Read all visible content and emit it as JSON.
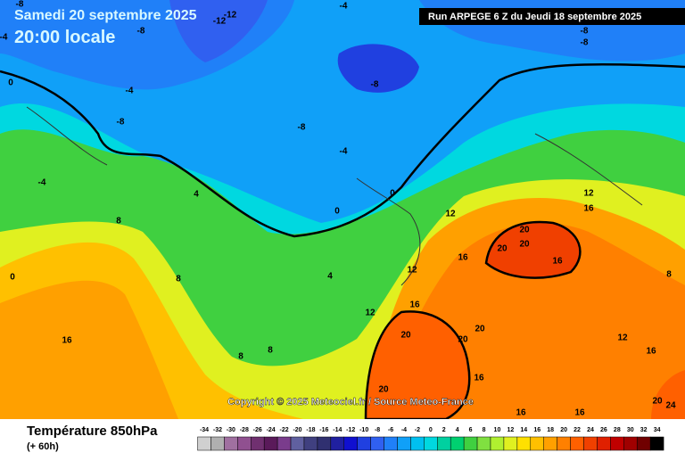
{
  "header": {
    "date": "Samedi 20 septembre 2025",
    "time": "20:00 locale",
    "run": "Run ARPEGE 6 Z du Jeudi 18 septembre 2025"
  },
  "copyright": "Copyright © 2025 Meteociel.fr / Source Meteo-France",
  "footer": {
    "title": "Température 850hPa",
    "lead": "(+ 60h)"
  },
  "scale": {
    "values": [
      -34,
      -32,
      -30,
      -28,
      -26,
      -24,
      -22,
      -20,
      -18,
      -16,
      -14,
      -12,
      -10,
      -8,
      -6,
      -4,
      -2,
      0,
      2,
      4,
      6,
      8,
      10,
      12,
      14,
      16,
      18,
      20,
      22,
      24,
      26,
      28,
      30,
      32,
      34
    ],
    "colors": [
      "#d0d0d0",
      "#b0b0b0",
      "#a070a0",
      "#905090",
      "#703070",
      "#5a1a5a",
      "#7a3c8c",
      "#6060a0",
      "#404080",
      "#303070",
      "#2020a0",
      "#1010d0",
      "#2040e0",
      "#3060f0",
      "#2080f8",
      "#10a0f8",
      "#00c0f0",
      "#00d8e0",
      "#00d0a0",
      "#00d070",
      "#40d040",
      "#80e040",
      "#b0f030",
      "#e0f020",
      "#ffe000",
      "#ffc000",
      "#ffa000",
      "#ff8000",
      "#ff6000",
      "#f04000",
      "#e02000",
      "#c00000",
      "#a00000",
      "#700000",
      "#000000"
    ]
  },
  "contour_labels": [
    -8,
    -4,
    -12,
    -12,
    -8,
    -4,
    -8,
    -8,
    -8,
    -4,
    0,
    -8,
    -8,
    -4,
    -4,
    4,
    0,
    0,
    8,
    12,
    20,
    20,
    20,
    16,
    16,
    12,
    8,
    0,
    4,
    16,
    12,
    16,
    20,
    20,
    20,
    8,
    8,
    16,
    20,
    16,
    16,
    20,
    24,
    12,
    16,
    8,
    12,
    16
  ]
}
